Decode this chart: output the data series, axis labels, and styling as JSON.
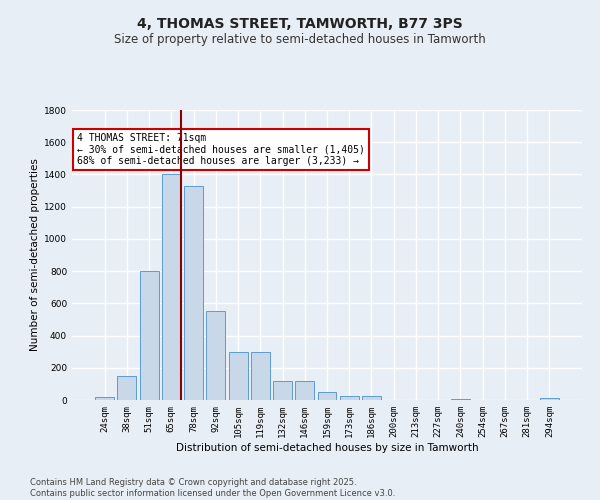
{
  "title": "4, THOMAS STREET, TAMWORTH, B77 3PS",
  "subtitle": "Size of property relative to semi-detached houses in Tamworth",
  "xlabel": "Distribution of semi-detached houses by size in Tamworth",
  "ylabel": "Number of semi-detached properties",
  "categories": [
    "24sqm",
    "38sqm",
    "51sqm",
    "65sqm",
    "78sqm",
    "92sqm",
    "105sqm",
    "119sqm",
    "132sqm",
    "146sqm",
    "159sqm",
    "173sqm",
    "186sqm",
    "200sqm",
    "213sqm",
    "227sqm",
    "240sqm",
    "254sqm",
    "267sqm",
    "281sqm",
    "294sqm"
  ],
  "values": [
    20,
    150,
    800,
    1400,
    1330,
    550,
    300,
    295,
    120,
    120,
    50,
    25,
    25,
    0,
    0,
    0,
    5,
    0,
    0,
    0,
    10
  ],
  "bar_color": "#c8d8e8",
  "bar_edge_color": "#5b9bd5",
  "vline_x": 3.42,
  "vline_color": "#8b0000",
  "annotation_text": "4 THOMAS STREET: 71sqm\n← 30% of semi-detached houses are smaller (1,405)\n68% of semi-detached houses are larger (3,233) →",
  "annotation_box_color": "#ffffff",
  "annotation_box_edge": "#cc0000",
  "ylim": [
    0,
    1800
  ],
  "yticks": [
    0,
    200,
    400,
    600,
    800,
    1000,
    1200,
    1400,
    1600,
    1800
  ],
  "footnote": "Contains HM Land Registry data © Crown copyright and database right 2025.\nContains public sector information licensed under the Open Government Licence v3.0.",
  "bg_color": "#e8eef5",
  "plot_bg_color": "#e8eef5",
  "grid_color": "#ffffff",
  "title_fontsize": 10,
  "subtitle_fontsize": 8.5,
  "axis_label_fontsize": 7.5,
  "tick_fontsize": 6.5,
  "annotation_fontsize": 7,
  "footnote_fontsize": 6
}
